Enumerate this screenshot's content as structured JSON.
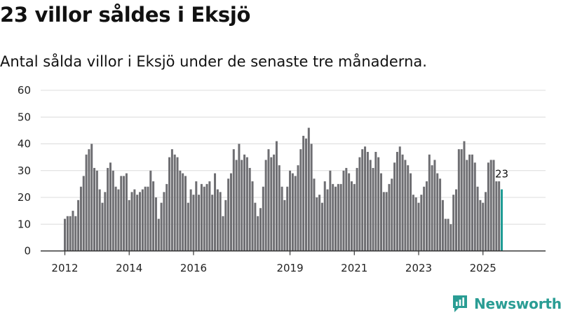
{
  "title": "23 villor såldes i Eksjö",
  "subtitle": "Antal sålda villor i Eksjö under de senaste tre månaderna.",
  "logo": {
    "icon": "newsworthy-logo-icon",
    "text": "Newsworthy"
  },
  "colors": {
    "bar": "#6e6e72",
    "highlight": "#1f9c95",
    "grid": "#dcdcdc",
    "axis": "#333333"
  },
  "chart_data": {
    "type": "bar",
    "title": "23 villor såldes i Eksjö",
    "ylabel": "",
    "xlabel": "",
    "ylim": [
      0,
      60
    ],
    "yticks": [
      0,
      10,
      20,
      30,
      40,
      50,
      60
    ],
    "x_start": 2012,
    "x_period": "monthly, Jan 2012 – Oct 2025",
    "xtick_labels": [
      "2012",
      "2014",
      "2016",
      "2019",
      "2021",
      "2023",
      "2025"
    ],
    "xtick_years": [
      2012,
      2014,
      2016,
      2019,
      2021,
      2023,
      2025
    ],
    "values": [
      12,
      13,
      13,
      15,
      13,
      19,
      24,
      28,
      36,
      38,
      40,
      31,
      30,
      23,
      18,
      22,
      31,
      33,
      30,
      24,
      23,
      28,
      28,
      29,
      19,
      22,
      23,
      21,
      22,
      23,
      24,
      24,
      30,
      26,
      20,
      12,
      18,
      22,
      25,
      35,
      38,
      36,
      35,
      30,
      29,
      28,
      18,
      23,
      21,
      26,
      21,
      25,
      24,
      25,
      26,
      21,
      29,
      23,
      22,
      13,
      19,
      27,
      29,
      38,
      34,
      40,
      34,
      36,
      35,
      31,
      26,
      18,
      13,
      16,
      24,
      34,
      38,
      35,
      36,
      41,
      32,
      24,
      19,
      24,
      30,
      29,
      28,
      32,
      38,
      43,
      42,
      46,
      40,
      27,
      20,
      21,
      18,
      26,
      23,
      30,
      25,
      24,
      25,
      25,
      30,
      31,
      29,
      26,
      25,
      31,
      35,
      38,
      39,
      37,
      34,
      31,
      37,
      35,
      29,
      22,
      22,
      25,
      27,
      33,
      37,
      39,
      36,
      34,
      32,
      29,
      21,
      20,
      18,
      21,
      24,
      26,
      36,
      32,
      34,
      29,
      27,
      19,
      12,
      12,
      10,
      21,
      23,
      38,
      38,
      41,
      34,
      36,
      36,
      33,
      24,
      19,
      18,
      22,
      33,
      34,
      34,
      26,
      26,
      23
    ],
    "highlight_last": true,
    "last_value_label": "23"
  }
}
